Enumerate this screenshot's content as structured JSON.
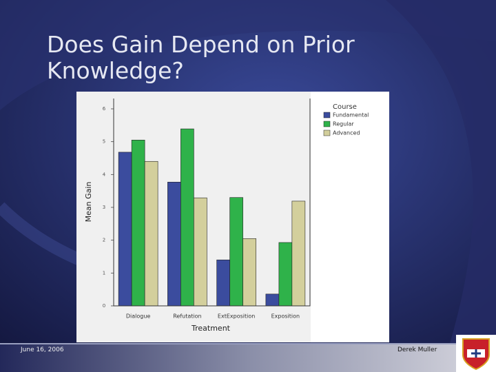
{
  "slide": {
    "title": "Does Gain Depend on Prior Knowledge?",
    "date": "June 16, 2006",
    "author": "Derek Muller"
  },
  "chart_data": {
    "type": "bar",
    "y_label": "Mean Gain",
    "x_label": "Treatment",
    "legend_title": "Course",
    "categories": [
      "Dialogue",
      "Refutation",
      "ExtExposition",
      "Exposition"
    ],
    "series": [
      {
        "name": "Fundamental",
        "color": "#3b4c9e",
        "values": [
          4.68,
          3.77,
          1.4,
          0.36
        ]
      },
      {
        "name": "Regular",
        "color": "#2fb24a",
        "values": [
          5.05,
          5.39,
          3.3,
          1.93
        ]
      },
      {
        "name": "Advanced",
        "color": "#d3cf9c",
        "values": [
          4.4,
          3.29,
          2.05,
          3.19
        ]
      }
    ],
    "ylim": [
      0,
      6
    ],
    "yticks": [
      0,
      1,
      2,
      3,
      4,
      5,
      6
    ]
  }
}
